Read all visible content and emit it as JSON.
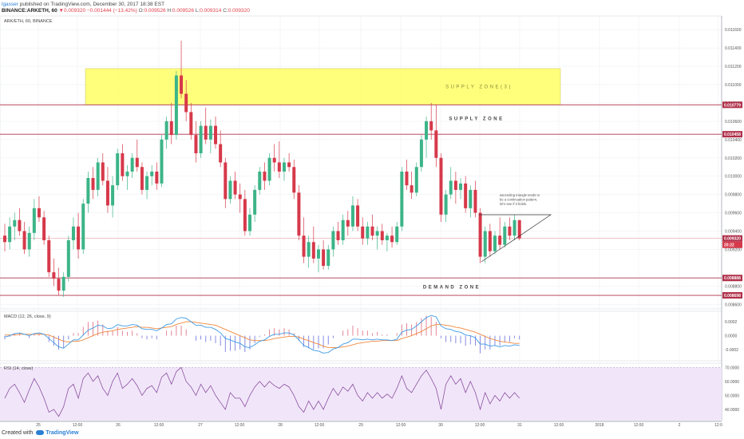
{
  "header": {
    "author": "lgasser",
    "published": "published on TradingView.com, December 30, 2017 18:38 EST",
    "symbol": "BINANCE:ARKETH, 60",
    "close_marker": "▼",
    "last": "0.009320",
    "change": "−0.001444 (−13.42%)",
    "o_label": "O:",
    "o_val": "0.009526",
    "h_label": "H:",
    "h_val": "0.009526",
    "l_label": "L:",
    "l_val": "0.009314",
    "c_label": "C:",
    "c_val": "0.009320"
  },
  "footer": {
    "created": "Created with",
    "brand": "TradingView"
  },
  "colors": {
    "up": "#3cb488",
    "down": "#d6394a",
    "macd": "#3d9ae6",
    "signal": "#f0883e",
    "rsi": "#8a4fa0",
    "rsi_band": "#f1e6f9",
    "zone": "#ffff66",
    "hline": "#b0304a"
  },
  "chart_data": {
    "type": "candlestick",
    "pane_title": "ARK/ETH, 60, BINANCE",
    "time_labels": [
      "25",
      "12:00",
      "26",
      "12:00",
      "27",
      "12:00",
      "28",
      "12:00",
      "29",
      "12:00",
      "30",
      "12:00",
      "31",
      "12:00",
      "2018",
      "12:00",
      "2",
      "12:0"
    ],
    "price_axis": {
      "ticks": [
        "0.011600",
        "0.011400",
        "0.011200",
        "0.011000",
        "0.010800",
        "0.010600",
        "0.010400",
        "0.010200",
        "0.010000",
        "0.009800",
        "0.009600",
        "0.009400",
        "0.009200",
        "0.008800",
        "0.008600"
      ],
      "tick_values": [
        0.0116,
        0.0114,
        0.0112,
        0.011,
        0.0108,
        0.0106,
        0.0104,
        0.0102,
        0.01,
        0.0098,
        0.0096,
        0.0094,
        0.0092,
        0.0088,
        0.0086
      ],
      "ylim": [
        0.00855,
        0.01175
      ]
    },
    "price_badges": [
      {
        "text": "0.010779",
        "value": 0.010779
      },
      {
        "text": "0.010458",
        "value": 0.010458
      },
      {
        "text": "0.009320",
        "value": 0.00932
      },
      {
        "text": "20:22",
        "value": 0.00925
      },
      {
        "text": "0.008888",
        "value": 0.008888
      },
      {
        "text": "0.008698",
        "value": 0.008698
      }
    ],
    "horizontal_lines": [
      0.010779,
      0.010458,
      0.008888,
      0.008698
    ],
    "last_price_line": 0.00932,
    "zones": [
      {
        "label": "SUPPLY ZONE(3)",
        "low": 0.010779,
        "high": 0.011175,
        "filled": true
      },
      {
        "label": "SUPPLY ZONE",
        "value": 0.01063,
        "filled": false
      },
      {
        "label": "DEMAND ZONE",
        "value": 0.00879,
        "filled": false
      }
    ],
    "annotation": [
      "ascending triangle tends to",
      "be a continuation pattern,",
      "let's see if it holds."
    ],
    "candles": [
      {
        "o": 0.00935,
        "h": 0.00948,
        "l": 0.00918,
        "c": 0.00928
      },
      {
        "o": 0.00928,
        "h": 0.00955,
        "l": 0.0092,
        "c": 0.00945
      },
      {
        "o": 0.00945,
        "h": 0.0096,
        "l": 0.0093,
        "c": 0.00952
      },
      {
        "o": 0.00952,
        "h": 0.00965,
        "l": 0.00935,
        "c": 0.0094
      },
      {
        "o": 0.0094,
        "h": 0.0095,
        "l": 0.00915,
        "c": 0.0092
      },
      {
        "o": 0.0092,
        "h": 0.00945,
        "l": 0.00912,
        "c": 0.00938
      },
      {
        "o": 0.00938,
        "h": 0.00975,
        "l": 0.0093,
        "c": 0.00965
      },
      {
        "o": 0.00965,
        "h": 0.00978,
        "l": 0.0095,
        "c": 0.00955
      },
      {
        "o": 0.00955,
        "h": 0.00962,
        "l": 0.00925,
        "c": 0.0093
      },
      {
        "o": 0.0093,
        "h": 0.00935,
        "l": 0.0089,
        "c": 0.00895
      },
      {
        "o": 0.00895,
        "h": 0.0091,
        "l": 0.0088,
        "c": 0.00888
      },
      {
        "o": 0.00888,
        "h": 0.009,
        "l": 0.0087,
        "c": 0.00875
      },
      {
        "o": 0.00875,
        "h": 0.00895,
        "l": 0.00868,
        "c": 0.0089
      },
      {
        "o": 0.0089,
        "h": 0.00935,
        "l": 0.00885,
        "c": 0.0093
      },
      {
        "o": 0.0093,
        "h": 0.00955,
        "l": 0.0092,
        "c": 0.00945
      },
      {
        "o": 0.00945,
        "h": 0.0096,
        "l": 0.0091,
        "c": 0.0092
      },
      {
        "o": 0.0092,
        "h": 0.00975,
        "l": 0.00915,
        "c": 0.0097
      },
      {
        "o": 0.0097,
        "h": 0.01005,
        "l": 0.0096,
        "c": 0.00998
      },
      {
        "o": 0.00998,
        "h": 0.0101,
        "l": 0.00975,
        "c": 0.00985
      },
      {
        "o": 0.00985,
        "h": 0.0102,
        "l": 0.00978,
        "c": 0.01015
      },
      {
        "o": 0.01015,
        "h": 0.01025,
        "l": 0.0099,
        "c": 0.00995
      },
      {
        "o": 0.00995,
        "h": 0.0101,
        "l": 0.0096,
        "c": 0.00968
      },
      {
        "o": 0.00968,
        "h": 0.01,
        "l": 0.00955,
        "c": 0.0099
      },
      {
        "o": 0.0099,
        "h": 0.0103,
        "l": 0.00985,
        "c": 0.01025
      },
      {
        "o": 0.01025,
        "h": 0.01035,
        "l": 0.00995,
        "c": 0.01
      },
      {
        "o": 0.01,
        "h": 0.01012,
        "l": 0.00985,
        "c": 0.01005
      },
      {
        "o": 0.01005,
        "h": 0.01025,
        "l": 0.00998,
        "c": 0.0102
      },
      {
        "o": 0.0102,
        "h": 0.0104,
        "l": 0.01005,
        "c": 0.0101
      },
      {
        "o": 0.0101,
        "h": 0.01015,
        "l": 0.0098,
        "c": 0.00985
      },
      {
        "o": 0.00985,
        "h": 0.01005,
        "l": 0.00975,
        "c": 0.01
      },
      {
        "o": 0.01,
        "h": 0.01012,
        "l": 0.0099,
        "c": 0.01005
      },
      {
        "o": 0.01005,
        "h": 0.01015,
        "l": 0.00985,
        "c": 0.00992
      },
      {
        "o": 0.00992,
        "h": 0.01045,
        "l": 0.00988,
        "c": 0.0104
      },
      {
        "o": 0.0104,
        "h": 0.01065,
        "l": 0.0103,
        "c": 0.0106
      },
      {
        "o": 0.0106,
        "h": 0.0108,
        "l": 0.01035,
        "c": 0.01045
      },
      {
        "o": 0.01045,
        "h": 0.01115,
        "l": 0.0104,
        "c": 0.0111
      },
      {
        "o": 0.0111,
        "h": 0.01148,
        "l": 0.01085,
        "c": 0.0109
      },
      {
        "o": 0.0109,
        "h": 0.01105,
        "l": 0.0106,
        "c": 0.0107
      },
      {
        "o": 0.0107,
        "h": 0.0108,
        "l": 0.0104,
        "c": 0.01045
      },
      {
        "o": 0.01045,
        "h": 0.0106,
        "l": 0.01015,
        "c": 0.01025
      },
      {
        "o": 0.01025,
        "h": 0.0106,
        "l": 0.0102,
        "c": 0.01055
      },
      {
        "o": 0.01055,
        "h": 0.01075,
        "l": 0.01035,
        "c": 0.0104
      },
      {
        "o": 0.0104,
        "h": 0.01062,
        "l": 0.01025,
        "c": 0.01055
      },
      {
        "o": 0.01055,
        "h": 0.01065,
        "l": 0.0103,
        "c": 0.01035
      },
      {
        "o": 0.01035,
        "h": 0.0105,
        "l": 0.0101,
        "c": 0.01015
      },
      {
        "o": 0.01015,
        "h": 0.0102,
        "l": 0.00965,
        "c": 0.00975
      },
      {
        "o": 0.00975,
        "h": 0.01,
        "l": 0.0097,
        "c": 0.00995
      },
      {
        "o": 0.00995,
        "h": 0.01005,
        "l": 0.00975,
        "c": 0.0098
      },
      {
        "o": 0.0098,
        "h": 0.00992,
        "l": 0.0096,
        "c": 0.00975
      },
      {
        "o": 0.00975,
        "h": 0.00985,
        "l": 0.00935,
        "c": 0.0094
      },
      {
        "o": 0.0094,
        "h": 0.00965,
        "l": 0.00935,
        "c": 0.00958
      },
      {
        "o": 0.00958,
        "h": 0.0099,
        "l": 0.0095,
        "c": 0.00985
      },
      {
        "o": 0.00985,
        "h": 0.0101,
        "l": 0.0098,
        "c": 0.01005
      },
      {
        "o": 0.01005,
        "h": 0.01015,
        "l": 0.00985,
        "c": 0.00995
      },
      {
        "o": 0.00995,
        "h": 0.01025,
        "l": 0.0099,
        "c": 0.0102
      },
      {
        "o": 0.0102,
        "h": 0.01035,
        "l": 0.01005,
        "c": 0.01015
      },
      {
        "o": 0.01015,
        "h": 0.01038,
        "l": 0.00998,
        "c": 0.01005
      },
      {
        "o": 0.01005,
        "h": 0.0102,
        "l": 0.00995,
        "c": 0.01015
      },
      {
        "o": 0.01015,
        "h": 0.01025,
        "l": 0.01005,
        "c": 0.0101
      },
      {
        "o": 0.0101,
        "h": 0.01018,
        "l": 0.00975,
        "c": 0.00982
      },
      {
        "o": 0.00982,
        "h": 0.0099,
        "l": 0.0093,
        "c": 0.00935
      },
      {
        "o": 0.00935,
        "h": 0.00955,
        "l": 0.00905,
        "c": 0.00912
      },
      {
        "o": 0.00912,
        "h": 0.00935,
        "l": 0.009,
        "c": 0.00928
      },
      {
        "o": 0.00928,
        "h": 0.00945,
        "l": 0.00905,
        "c": 0.0091
      },
      {
        "o": 0.0091,
        "h": 0.00925,
        "l": 0.00895,
        "c": 0.0092
      },
      {
        "o": 0.0092,
        "h": 0.0093,
        "l": 0.00898,
        "c": 0.00902
      },
      {
        "o": 0.00902,
        "h": 0.00925,
        "l": 0.00898,
        "c": 0.0092
      },
      {
        "o": 0.0092,
        "h": 0.00945,
        "l": 0.00912,
        "c": 0.0094
      },
      {
        "o": 0.0094,
        "h": 0.0095,
        "l": 0.00925,
        "c": 0.0093
      },
      {
        "o": 0.0093,
        "h": 0.00958,
        "l": 0.00925,
        "c": 0.00952
      },
      {
        "o": 0.00952,
        "h": 0.00962,
        "l": 0.00935,
        "c": 0.00945
      },
      {
        "o": 0.00945,
        "h": 0.00978,
        "l": 0.0094,
        "c": 0.00968
      },
      {
        "o": 0.00968,
        "h": 0.00975,
        "l": 0.0094,
        "c": 0.00945
      },
      {
        "o": 0.00945,
        "h": 0.00955,
        "l": 0.00925,
        "c": 0.00932
      },
      {
        "o": 0.00932,
        "h": 0.0095,
        "l": 0.00925,
        "c": 0.00945
      },
      {
        "o": 0.00945,
        "h": 0.00958,
        "l": 0.0093,
        "c": 0.00935
      },
      {
        "o": 0.00935,
        "h": 0.00945,
        "l": 0.0092,
        "c": 0.0094
      },
      {
        "o": 0.0094,
        "h": 0.00948,
        "l": 0.00925,
        "c": 0.0093
      },
      {
        "o": 0.0093,
        "h": 0.00938,
        "l": 0.00918,
        "c": 0.00935
      },
      {
        "o": 0.00935,
        "h": 0.00945,
        "l": 0.00922,
        "c": 0.00928
      },
      {
        "o": 0.00928,
        "h": 0.0095,
        "l": 0.00925,
        "c": 0.00945
      },
      {
        "o": 0.00945,
        "h": 0.0101,
        "l": 0.0094,
        "c": 0.01005
      },
      {
        "o": 0.01005,
        "h": 0.01018,
        "l": 0.00985,
        "c": 0.0099
      },
      {
        "o": 0.0099,
        "h": 0.01005,
        "l": 0.00975,
        "c": 0.00982
      },
      {
        "o": 0.00982,
        "h": 0.01015,
        "l": 0.00978,
        "c": 0.0101
      },
      {
        "o": 0.0101,
        "h": 0.01045,
        "l": 0.01005,
        "c": 0.0104
      },
      {
        "o": 0.0104,
        "h": 0.01065,
        "l": 0.0102,
        "c": 0.0106
      },
      {
        "o": 0.0106,
        "h": 0.0108,
        "l": 0.0104,
        "c": 0.0105
      },
      {
        "o": 0.0105,
        "h": 0.01078,
        "l": 0.0101,
        "c": 0.0102
      },
      {
        "o": 0.0102,
        "h": 0.01025,
        "l": 0.0095,
        "c": 0.00958
      },
      {
        "o": 0.00958,
        "h": 0.00985,
        "l": 0.0095,
        "c": 0.0098
      },
      {
        "o": 0.0098,
        "h": 0.0101,
        "l": 0.00975,
        "c": 0.00995
      },
      {
        "o": 0.00995,
        "h": 0.01005,
        "l": 0.0097,
        "c": 0.00985
      },
      {
        "o": 0.00985,
        "h": 0.00998,
        "l": 0.00975,
        "c": 0.00992
      },
      {
        "o": 0.00992,
        "h": 0.01,
        "l": 0.0096,
        "c": 0.00965
      },
      {
        "o": 0.00965,
        "h": 0.0099,
        "l": 0.00955,
        "c": 0.00985
      },
      {
        "o": 0.00985,
        "h": 0.00995,
        "l": 0.00955,
        "c": 0.0096
      },
      {
        "o": 0.0096,
        "h": 0.00965,
        "l": 0.00905,
        "c": 0.00912
      },
      {
        "o": 0.00912,
        "h": 0.00945,
        "l": 0.00905,
        "c": 0.0094
      },
      {
        "o": 0.0094,
        "h": 0.00948,
        "l": 0.00912,
        "c": 0.00918
      },
      {
        "o": 0.00918,
        "h": 0.0094,
        "l": 0.00915,
        "c": 0.00935
      },
      {
        "o": 0.00935,
        "h": 0.00955,
        "l": 0.0092,
        "c": 0.00925
      },
      {
        "o": 0.00925,
        "h": 0.0095,
        "l": 0.00922,
        "c": 0.00945
      },
      {
        "o": 0.00945,
        "h": 0.00955,
        "l": 0.0093,
        "c": 0.00935
      },
      {
        "o": 0.00935,
        "h": 0.00958,
        "l": 0.0093,
        "c": 0.00952
      },
      {
        "o": 0.00952,
        "h": 0.00952,
        "l": 0.0093,
        "c": 0.00932
      }
    ],
    "macd": {
      "title": "MACD (12, 26, close, 9)",
      "ticks": [
        "0.0002",
        "0.0000",
        "-0.0002"
      ],
      "tick_values": [
        0.0002,
        0.0,
        -0.0002
      ],
      "ylim": [
        -0.00036,
        0.00035
      ],
      "macd_line": [
        -2e-05,
        0.0,
        3e-05,
        4e-05,
        2e-05,
        0.0,
        3e-05,
        4e-05,
        2e-05,
        -4e-05,
        -0.0001,
        -0.00016,
        -0.00018,
        -0.00012,
        -6e-05,
        -6e-05,
        1e-05,
        8e-05,
        0.00011,
        0.00015,
        0.00014,
        0.0001,
        0.00011,
        0.00016,
        0.00014,
        0.00014,
        0.00016,
        0.00015,
        0.0001,
        9e-05,
        9e-05,
        7e-05,
        0.00011,
        0.00016,
        0.00017,
        0.00024,
        0.00026,
        0.00025,
        0.0002,
        0.00015,
        0.00015,
        0.00012,
        0.00012,
        9e-05,
        4e-05,
        -4e-05,
        -6e-05,
        -9e-05,
        -0.00011,
        -0.00016,
        -0.00017,
        -0.00013,
        -8e-05,
        -6e-05,
        -1e-05,
        2e-05,
        2e-05,
        4e-05,
        4e-05,
        1e-05,
        -6e-05,
        -0.00014,
        -0.00017,
        -0.00021,
        -0.00022,
        -0.00025,
        -0.00024,
        -0.00019,
        -0.00017,
        -0.00012,
        -0.0001,
        -5e-05,
        -5e-05,
        -6e-05,
        -5e-05,
        -6e-05,
        -5e-05,
        -6e-05,
        -6e-05,
        -7e-05,
        -5e-05,
        5e-05,
        8e-05,
        9e-05,
        0.00014,
        0.0002,
        0.00026,
        0.00029,
        0.00027,
        0.00014,
        0.0001,
        9e-05,
        6e-05,
        5e-05,
        1e-05,
        0.0,
        -3e-05,
        -0.00012,
        -0.00012,
        -0.00015,
        -0.00014,
        -0.00016,
        -0.00014,
        -0.00015,
        -0.00013,
        -0.00014
      ],
      "signal_line": [
        1e-05,
        1e-05,
        1e-05,
        2e-05,
        2e-05,
        2e-05,
        2e-05,
        2e-05,
        2e-05,
        1e-05,
        -2e-05,
        -5e-05,
        -8e-05,
        -9e-05,
        -8e-05,
        -8e-05,
        -6e-05,
        -3e-05,
        -0.0,
        3e-05,
        5e-05,
        6e-05,
        7e-05,
        9e-05,
        0.0001,
        0.00011,
        0.00012,
        0.00013,
        0.00012,
        0.00012,
        0.00011,
        0.0001,
        0.00011,
        0.00012,
        0.00013,
        0.00016,
        0.00018,
        0.0002,
        0.0002,
        0.00019,
        0.00018,
        0.00017,
        0.00016,
        0.00015,
        0.00012,
        9e-05,
        6e-05,
        3e-05,
        0.0,
        -3e-05,
        -6e-05,
        -7e-05,
        -7e-05,
        -7e-05,
        -6e-05,
        -4e-05,
        -3e-05,
        -2e-05,
        -1e-05,
        -1e-05,
        -2e-05,
        -5e-05,
        -7e-05,
        -0.0001,
        -0.00012,
        -0.00015,
        -0.00017,
        -0.00017,
        -0.00017,
        -0.00016,
        -0.00015,
        -0.00013,
        -0.00011,
        -0.0001,
        -9e-05,
        -8e-05,
        -8e-05,
        -7e-05,
        -7e-05,
        -7e-05,
        -7e-05,
        -4e-05,
        -2e-05,
        0.0,
        3e-05,
        6e-05,
        0.0001,
        0.00014,
        0.00016,
        0.00016,
        0.00015,
        0.00014,
        0.00012,
        0.00011,
        9e-05,
        7e-05,
        5e-05,
        2e-05,
        -1e-05,
        -4e-05,
        -6e-05,
        -8e-05,
        -9e-05,
        -0.0001,
        -0.00011,
        -0.00011
      ]
    },
    "rsi": {
      "title": "RSI (14, close)",
      "ticks": [
        "70.0000",
        "60.0000",
        "50.0000",
        "40.0000"
      ],
      "tick_values": [
        70,
        60,
        50,
        40
      ],
      "ylim": [
        32,
        73
      ],
      "band": [
        30,
        70
      ],
      "values": [
        48,
        55,
        58,
        52,
        45,
        54,
        62,
        56,
        48,
        38,
        40,
        35,
        42,
        55,
        58,
        48,
        62,
        66,
        60,
        64,
        55,
        50,
        60,
        66,
        55,
        58,
        62,
        57,
        50,
        55,
        57,
        52,
        63,
        66,
        58,
        67,
        70,
        60,
        56,
        50,
        58,
        52,
        57,
        50,
        45,
        40,
        52,
        48,
        48,
        42,
        50,
        56,
        60,
        56,
        60,
        57,
        55,
        58,
        56,
        50,
        42,
        38,
        46,
        40,
        46,
        40,
        48,
        55,
        50,
        56,
        53,
        58,
        50,
        46,
        52,
        48,
        52,
        48,
        51,
        48,
        55,
        64,
        55,
        52,
        58,
        64,
        68,
        62,
        55,
        40,
        58,
        64,
        58,
        62,
        52,
        60,
        52,
        40,
        52,
        44,
        50,
        46,
        52,
        48,
        52,
        48
      ]
    }
  }
}
